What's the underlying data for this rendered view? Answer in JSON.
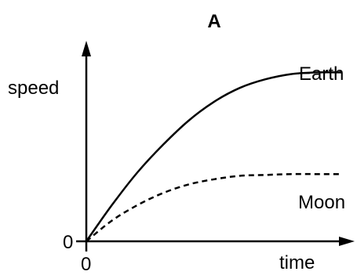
{
  "chart_data": {
    "type": "line",
    "title": "A",
    "xlabel": "time",
    "ylabel": "speed",
    "x_tick_labels": [
      "0"
    ],
    "y_tick_labels": [
      "0"
    ],
    "grid": false,
    "legend": "none",
    "xlim": [
      0,
      1
    ],
    "ylim": [
      0,
      1
    ],
    "series": [
      {
        "name": "Earth",
        "style": "solid",
        "color": "#000000",
        "x": [
          0,
          0.1,
          0.2,
          0.3,
          0.4,
          0.5,
          0.6,
          0.7,
          0.8,
          0.9,
          1.0
        ],
        "y": [
          0,
          0.21,
          0.4,
          0.56,
          0.7,
          0.81,
          0.89,
          0.94,
          0.97,
          0.98,
          0.98
        ]
      },
      {
        "name": "Moon",
        "style": "dashed",
        "color": "#000000",
        "x": [
          0,
          0.1,
          0.2,
          0.3,
          0.4,
          0.5,
          0.6,
          0.7,
          0.8,
          0.9,
          1.0
        ],
        "y": [
          0,
          0.12,
          0.21,
          0.28,
          0.33,
          0.36,
          0.38,
          0.385,
          0.39,
          0.39,
          0.39
        ]
      }
    ]
  }
}
